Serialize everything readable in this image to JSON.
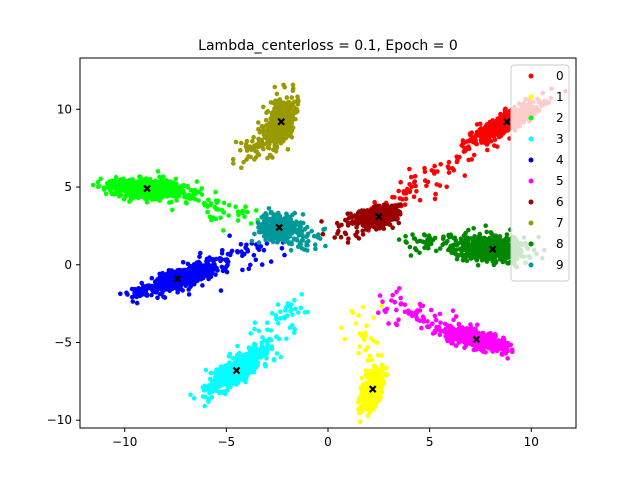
{
  "chart_data": {
    "type": "scatter",
    "title": "Lambda_centerloss = 0.1, Epoch = 0",
    "xlabel": "",
    "ylabel": "",
    "xlim": [
      -12.2,
      12.2
    ],
    "ylim": [
      -10.5,
      13.3
    ],
    "xticks": [
      -10,
      -5,
      0,
      5,
      10
    ],
    "yticks": [
      -10,
      -5,
      0,
      5,
      10
    ],
    "xtick_labels": [
      "−10",
      "−5",
      "0",
      "5",
      "10"
    ],
    "ytick_labels": [
      "−10",
      "−5",
      "0",
      "5",
      "10"
    ],
    "grid": false,
    "legend_position": "top-right",
    "series": [
      {
        "name": "0",
        "color": "#ff0000",
        "center": [
          8.8,
          9.2
        ],
        "direction_deg": 35,
        "spread": [
          1.0,
          0.25
        ],
        "outliers_toward": [
          2.5,
          3.0
        ],
        "points": 650
      },
      {
        "name": "1",
        "color": "#ffff00",
        "center": [
          2.2,
          -8.0
        ],
        "direction_deg": 75,
        "spread": [
          0.7,
          0.22
        ],
        "outliers_toward": [
          1.5,
          -2.5
        ],
        "points": 400
      },
      {
        "name": "2",
        "color": "#00ff00",
        "center": [
          -8.9,
          4.9
        ],
        "direction_deg": -5,
        "spread": [
          0.9,
          0.3
        ],
        "outliers_toward": [
          -3.5,
          3.0
        ],
        "points": 650
      },
      {
        "name": "3",
        "color": "#00ffff",
        "center": [
          -4.5,
          -6.8
        ],
        "direction_deg": 45,
        "spread": [
          0.9,
          0.3
        ],
        "outliers_toward": [
          -1.5,
          -2.5
        ],
        "points": 650
      },
      {
        "name": "4",
        "color": "#0000ff",
        "center": [
          -7.4,
          -0.9
        ],
        "direction_deg": 25,
        "spread": [
          1.0,
          0.25
        ],
        "outliers_toward": [
          -2.5,
          1.5
        ],
        "points": 650
      },
      {
        "name": "5",
        "color": "#ff00ff",
        "center": [
          7.3,
          -4.8
        ],
        "direction_deg": -20,
        "spread": [
          0.8,
          0.25
        ],
        "outliers_toward": [
          3.0,
          -2.5
        ],
        "points": 600
      },
      {
        "name": "6",
        "color": "#990000",
        "center": [
          2.5,
          3.1
        ],
        "direction_deg": 20,
        "spread": [
          0.45,
          0.3
        ],
        "outliers_toward": [
          0.5,
          2.0
        ],
        "points": 500
      },
      {
        "name": "7",
        "color": "#999900",
        "center": [
          -2.3,
          9.2
        ],
        "direction_deg": 80,
        "spread": [
          0.8,
          0.3
        ],
        "outliers_toward": [
          -4.0,
          7.0
        ],
        "points": 550
      },
      {
        "name": "8",
        "color": "#008800",
        "center": [
          8.1,
          1.0
        ],
        "direction_deg": 0,
        "spread": [
          0.8,
          0.4
        ],
        "outliers_toward": [
          4.0,
          1.5
        ],
        "points": 650
      },
      {
        "name": "9",
        "color": "#009999",
        "center": [
          -2.4,
          2.4
        ],
        "direction_deg": 10,
        "spread": [
          0.45,
          0.4
        ],
        "outliers_toward": [
          -0.5,
          1.5
        ],
        "points": 450
      }
    ]
  }
}
